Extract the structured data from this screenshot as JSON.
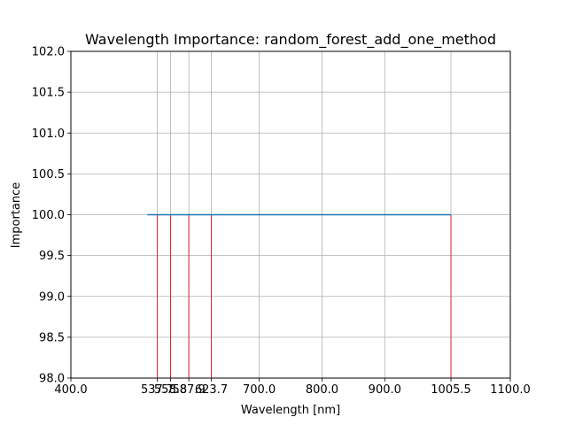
{
  "chart_data": {
    "type": "line",
    "title": "Wavelength Importance: random_forest_add_one_method",
    "xlabel": "Wavelength [nm]",
    "ylabel": "Importance",
    "xlim": [
      400,
      1100
    ],
    "ylim": [
      98.0,
      102.0
    ],
    "grid": true,
    "x_ticks": [
      400.0,
      537.7,
      558.8,
      587.9,
      623.7,
      700.0,
      800.0,
      900.0,
      1005.5,
      1100.0
    ],
    "x_tick_labels": [
      "400.0",
      "537.7",
      "558.8",
      "587.9",
      "623.7",
      "700.0",
      "800.0",
      "900.0",
      "1005.5",
      "1100.0"
    ],
    "y_ticks": [
      98.0,
      98.5,
      99.0,
      99.5,
      100.0,
      100.5,
      101.0,
      101.5,
      102.0
    ],
    "y_tick_labels": [
      "98.0",
      "98.5",
      "99.0",
      "99.5",
      "100.0",
      "100.5",
      "101.0",
      "101.5",
      "102.0"
    ],
    "series": [
      {
        "x": [
          522,
          1005.5
        ],
        "y": [
          100.0,
          100.0
        ],
        "color": "#1f77b4"
      }
    ],
    "markers": {
      "x": [
        537.7,
        558.8,
        587.9,
        623.7,
        1005.5
      ],
      "y": [
        100.0,
        100.0,
        100.0,
        100.0,
        100.0
      ],
      "color": "#d62728"
    }
  }
}
